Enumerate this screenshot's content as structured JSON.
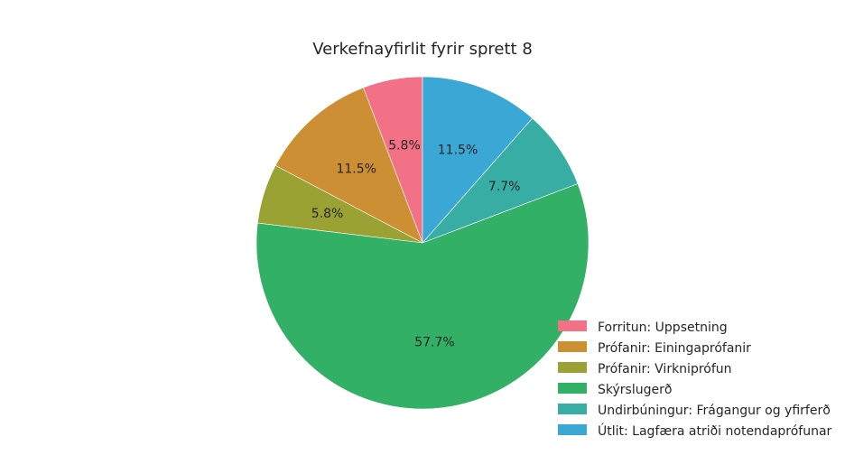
{
  "chart_data": {
    "type": "pie",
    "title": "Verkefnayfirlit fyrir sprett 8",
    "slices": [
      {
        "label": "Forritun: Uppsetning",
        "value": 5.8,
        "pct_label": "5.8%",
        "color": "#f37186"
      },
      {
        "label": "Prófanir: Einingaprófanir",
        "value": 11.5,
        "pct_label": "11.5%",
        "color": "#cd8f34"
      },
      {
        "label": "Prófanir: Virkniprófun",
        "value": 5.8,
        "pct_label": "5.8%",
        "color": "#99a232"
      },
      {
        "label": "Skýrslugerð",
        "value": 57.7,
        "pct_label": "57.7%",
        "color": "#32b065"
      },
      {
        "label": "Undirbúningur: Frágangur og yfirferð",
        "value": 7.7,
        "pct_label": "7.7%",
        "color": "#37ada4"
      },
      {
        "label": "Útlit: Lagfæra atriði notendaprófunar",
        "value": 11.5,
        "pct_label": "11.5%",
        "color": "#3ba7d4"
      }
    ],
    "start_angle": "top (12 o'clock)",
    "direction": "counterclockwise",
    "legend_position": "bottom-right"
  }
}
